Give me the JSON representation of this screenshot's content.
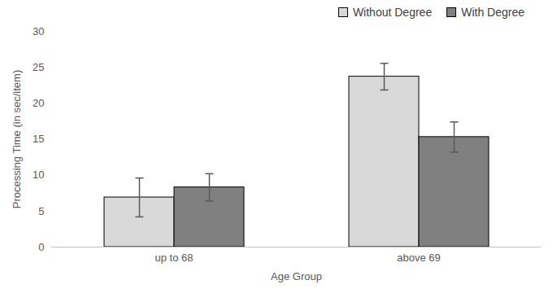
{
  "chart_data": {
    "type": "bar",
    "x_label": "Age Group",
    "y_label": "Processing Time (in sec/item)",
    "categories": [
      "up to 68",
      "above 69"
    ],
    "series": [
      {
        "name": "Without Degree",
        "color": "#d9d9d9",
        "values": [
          6.9,
          23.7
        ],
        "errors": [
          2.7,
          1.85
        ]
      },
      {
        "name": "With Degree",
        "color": "#808080",
        "values": [
          8.3,
          15.3
        ],
        "errors": [
          1.9,
          2.1
        ]
      }
    ],
    "ylim": [
      0,
      30
    ],
    "yticks": [
      0,
      5,
      10,
      15,
      20,
      25,
      30
    ],
    "grid": false,
    "legend": "top-right"
  }
}
